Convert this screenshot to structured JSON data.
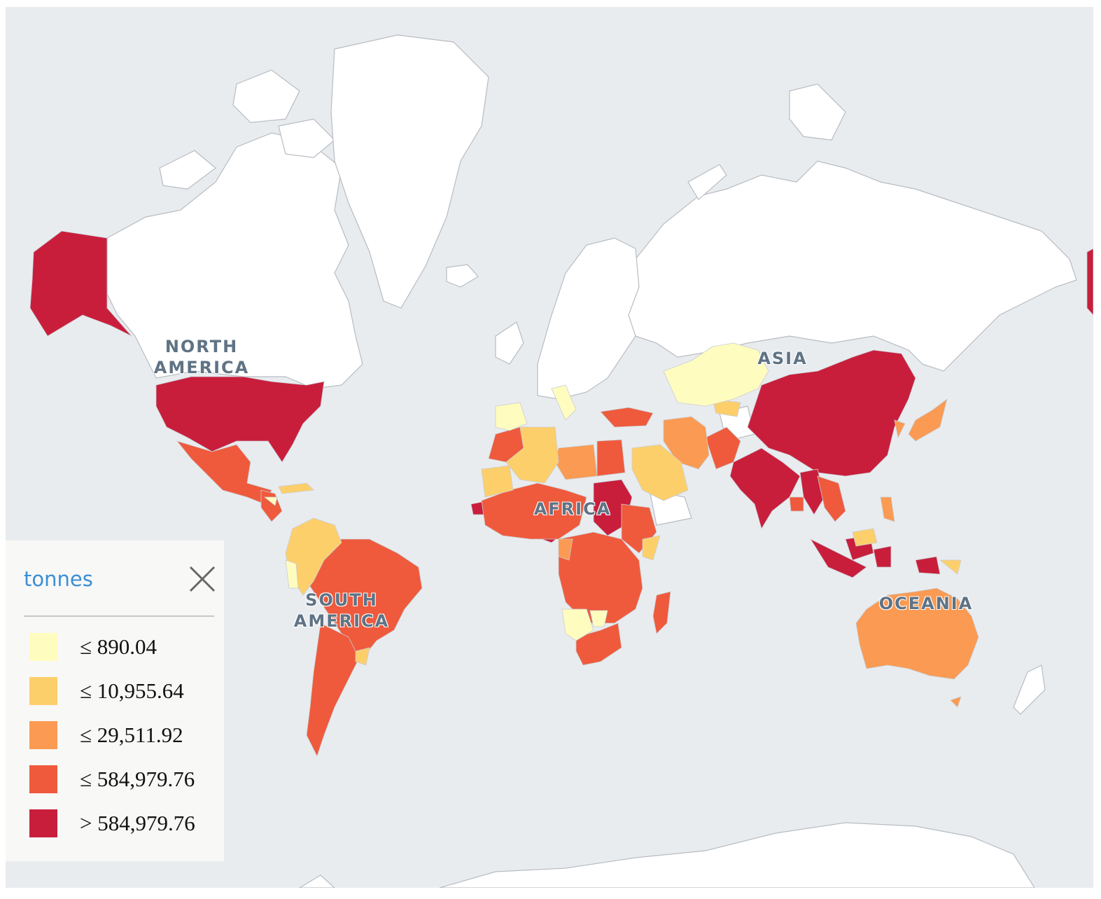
{
  "legend": {
    "title": "tonnes",
    "close_label": "close legend",
    "classes": [
      {
        "label": "≤ 890.04",
        "color": "#fffcbf"
      },
      {
        "label": "≤ 10,955.64",
        "color": "#fdcf6b"
      },
      {
        "label": "≤ 29,511.92",
        "color": "#fb9a52"
      },
      {
        "label": "≤ 584,979.76",
        "color": "#ef5a3c"
      },
      {
        "label": "> 584,979.76",
        "color": "#c81e3c"
      }
    ]
  },
  "continent_labels": {
    "north_america": "NORTH\nAMERICA",
    "south_america": "SOUTH\nAMERICA",
    "africa": "AFRICA",
    "asia": "ASIA",
    "oceania": "OCEANIA"
  },
  "colors": {
    "ocean": "#e9ecef",
    "no_data_land": "#ffffff",
    "class_1": "#fffcbf",
    "class_2": "#fdcf6b",
    "class_3": "#fb9a52",
    "class_4": "#ef5a3c",
    "class_5": "#c81e3c"
  }
}
